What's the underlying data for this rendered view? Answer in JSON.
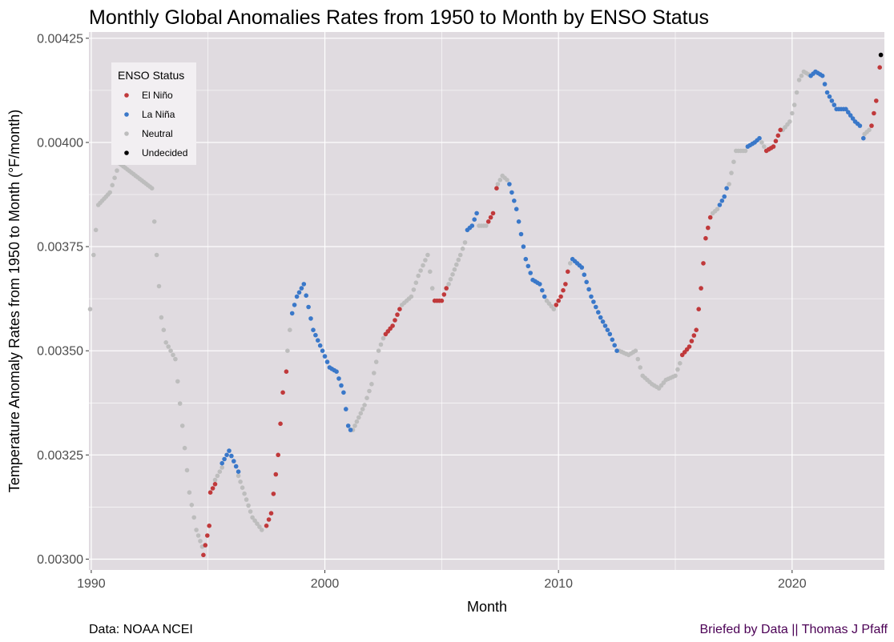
{
  "chart_data": {
    "type": "scatter",
    "title": "Monthly Global Anomalies Rates from 1950 to Month by ENSO Status",
    "xlabel": "Month",
    "ylabel": "Temperature Anomaly Rates from 1950 to Month (°F/month)",
    "xlim": [
      1989.9,
      2023.95
    ],
    "ylim": [
      0.002974,
      0.004265
    ],
    "x_ticks": [
      1990,
      2000,
      2010,
      2020
    ],
    "y_ticks": [
      0.003,
      0.00325,
      0.0035,
      0.00375,
      0.004,
      0.00425
    ],
    "x_tick_labels": [
      "1990",
      "2000",
      "2010",
      "2020"
    ],
    "y_tick_labels": [
      "0.00300",
      "0.00325",
      "0.00350",
      "0.00375",
      "0.00400",
      "0.00425"
    ],
    "grid": true,
    "legend": {
      "title": "ENSO Status",
      "position": "top-left",
      "entries": [
        {
          "label": "El Niño",
          "color": "#c0393b"
        },
        {
          "label": "La Niña",
          "color": "#3a78c9"
        },
        {
          "label": "Neutral",
          "color": "#bdbdbd"
        },
        {
          "label": "Undecided",
          "color": "#000000"
        }
      ]
    },
    "colors": {
      "El Niño": "#c0393b",
      "La Niña": "#3a78c9",
      "Neutral": "#bdbdbd",
      "Undecided": "#000000"
    },
    "anchors": [
      [
        1989.95,
        0.0036,
        "Neutral"
      ],
      [
        1990.1,
        0.00373,
        "Neutral"
      ],
      [
        1990.3,
        0.00385,
        "Neutral"
      ],
      [
        1990.8,
        0.00388,
        "Neutral"
      ],
      [
        1991.2,
        0.00395,
        "Neutral"
      ],
      [
        1992.6,
        0.00389,
        "Neutral"
      ],
      [
        1992.8,
        0.00373,
        "Neutral"
      ],
      [
        1993.0,
        0.00358,
        "Neutral"
      ],
      [
        1993.2,
        0.00352,
        "Neutral"
      ],
      [
        1993.6,
        0.00348,
        "Neutral"
      ],
      [
        1993.9,
        0.00332,
        "Neutral"
      ],
      [
        1994.2,
        0.00316,
        "Neutral"
      ],
      [
        1994.5,
        0.00307,
        "Neutral"
      ],
      [
        1994.75,
        0.00303,
        "Neutral"
      ],
      [
        1994.8,
        0.00301,
        "El Niño"
      ],
      [
        1995.05,
        0.00308,
        "El Niño"
      ],
      [
        1995.1,
        0.00316,
        "El Niño"
      ],
      [
        1995.3,
        0.00318,
        "El Niño"
      ],
      [
        1995.3,
        0.00319,
        "Neutral"
      ],
      [
        1995.6,
        0.00322,
        "Neutral"
      ],
      [
        1995.6,
        0.00323,
        "La Niña"
      ],
      [
        1995.9,
        0.00326,
        "La Niña"
      ],
      [
        1996.3,
        0.00321,
        "La Niña"
      ],
      [
        1996.3,
        0.0032,
        "Neutral"
      ],
      [
        1996.9,
        0.0031,
        "Neutral"
      ],
      [
        1997.3,
        0.00307,
        "Neutral"
      ],
      [
        1997.5,
        0.00308,
        "El Niño"
      ],
      [
        1997.7,
        0.00311,
        "El Niño"
      ],
      [
        1998.0,
        0.00325,
        "El Niño"
      ],
      [
        1998.2,
        0.0034,
        "El Niño"
      ],
      [
        1998.35,
        0.00345,
        "El Niño"
      ],
      [
        1998.4,
        0.0035,
        "Neutral"
      ],
      [
        1998.5,
        0.00355,
        "Neutral"
      ],
      [
        1998.6,
        0.00359,
        "La Niña"
      ],
      [
        1998.8,
        0.00363,
        "La Niña"
      ],
      [
        1999.1,
        0.00366,
        "La Niña"
      ],
      [
        1999.5,
        0.00355,
        "La Niña"
      ],
      [
        1999.9,
        0.0035,
        "La Niña"
      ],
      [
        2000.2,
        0.00346,
        "La Niña"
      ],
      [
        2000.5,
        0.00345,
        "La Niña"
      ],
      [
        2000.8,
        0.0034,
        "La Niña"
      ],
      [
        2001.0,
        0.00332,
        "La Niña"
      ],
      [
        2001.1,
        0.00331,
        "La Niña"
      ],
      [
        2001.2,
        0.00331,
        "Neutral"
      ],
      [
        2001.7,
        0.00337,
        "Neutral"
      ],
      [
        2002.0,
        0.00342,
        "Neutral"
      ],
      [
        2002.3,
        0.0035,
        "Neutral"
      ],
      [
        2002.5,
        0.00353,
        "Neutral"
      ],
      [
        2002.6,
        0.00354,
        "El Niño"
      ],
      [
        2002.9,
        0.00356,
        "El Niño"
      ],
      [
        2003.2,
        0.0036,
        "El Niño"
      ],
      [
        2003.3,
        0.00361,
        "Neutral"
      ],
      [
        2003.7,
        0.00363,
        "Neutral"
      ],
      [
        2004.0,
        0.00368,
        "Neutral"
      ],
      [
        2004.4,
        0.00373,
        "Neutral"
      ],
      [
        2004.6,
        0.00365,
        "Neutral"
      ],
      [
        2004.7,
        0.00362,
        "El Niño"
      ],
      [
        2005.0,
        0.00362,
        "El Niño"
      ],
      [
        2005.2,
        0.00365,
        "El Niño"
      ],
      [
        2005.3,
        0.00366,
        "Neutral"
      ],
      [
        2005.8,
        0.00373,
        "Neutral"
      ],
      [
        2006.0,
        0.00376,
        "Neutral"
      ],
      [
        2006.1,
        0.00379,
        "La Niña"
      ],
      [
        2006.3,
        0.0038,
        "La Niña"
      ],
      [
        2006.5,
        0.00383,
        "La Niña"
      ],
      [
        2006.6,
        0.0038,
        "Neutral"
      ],
      [
        2006.9,
        0.0038,
        "Neutral"
      ],
      [
        2007.0,
        0.00381,
        "El Niño"
      ],
      [
        2007.2,
        0.00383,
        "El Niño"
      ],
      [
        2007.35,
        0.00389,
        "El Niño"
      ],
      [
        2007.4,
        0.0039,
        "Neutral"
      ],
      [
        2007.6,
        0.00392,
        "Neutral"
      ],
      [
        2007.8,
        0.00391,
        "Neutral"
      ],
      [
        2007.9,
        0.0039,
        "La Niña"
      ],
      [
        2008.2,
        0.00384,
        "La Niña"
      ],
      [
        2008.6,
        0.00372,
        "La Niña"
      ],
      [
        2008.9,
        0.00367,
        "La Niña"
      ],
      [
        2009.2,
        0.00366,
        "La Niña"
      ],
      [
        2009.4,
        0.00363,
        "La Niña"
      ],
      [
        2009.5,
        0.00362,
        "Neutral"
      ],
      [
        2009.8,
        0.0036,
        "Neutral"
      ],
      [
        2009.9,
        0.00361,
        "El Niño"
      ],
      [
        2010.1,
        0.00363,
        "El Niño"
      ],
      [
        2010.3,
        0.00366,
        "El Niño"
      ],
      [
        2010.4,
        0.00369,
        "El Niño"
      ],
      [
        2010.5,
        0.00371,
        "Neutral"
      ],
      [
        2010.6,
        0.00372,
        "La Niña"
      ],
      [
        2011.0,
        0.0037,
        "La Niña"
      ],
      [
        2011.4,
        0.00363,
        "La Niña"
      ],
      [
        2011.8,
        0.00358,
        "La Niña"
      ],
      [
        2012.2,
        0.00354,
        "La Niña"
      ],
      [
        2012.5,
        0.0035,
        "La Niña"
      ],
      [
        2012.6,
        0.0035,
        "Neutral"
      ],
      [
        2013.0,
        0.00349,
        "Neutral"
      ],
      [
        2013.3,
        0.0035,
        "Neutral"
      ],
      [
        2013.6,
        0.00344,
        "Neutral"
      ],
      [
        2014.0,
        0.00342,
        "Neutral"
      ],
      [
        2014.3,
        0.00341,
        "Neutral"
      ],
      [
        2014.6,
        0.00343,
        "Neutral"
      ],
      [
        2015.0,
        0.00344,
        "Neutral"
      ],
      [
        2015.2,
        0.00347,
        "Neutral"
      ],
      [
        2015.3,
        0.00349,
        "El Niño"
      ],
      [
        2015.6,
        0.00351,
        "El Niño"
      ],
      [
        2015.9,
        0.00355,
        "El Niño"
      ],
      [
        2016.1,
        0.00365,
        "El Niño"
      ],
      [
        2016.3,
        0.00377,
        "El Niño"
      ],
      [
        2016.5,
        0.00382,
        "El Niño"
      ],
      [
        2016.6,
        0.00383,
        "Neutral"
      ],
      [
        2016.8,
        0.00384,
        "Neutral"
      ],
      [
        2016.9,
        0.00385,
        "La Niña"
      ],
      [
        2017.1,
        0.00387,
        "La Niña"
      ],
      [
        2017.2,
        0.00389,
        "La Niña"
      ],
      [
        2017.3,
        0.0039,
        "Neutral"
      ],
      [
        2017.6,
        0.00398,
        "Neutral"
      ],
      [
        2018.0,
        0.00398,
        "Neutral"
      ],
      [
        2018.1,
        0.00399,
        "La Niña"
      ],
      [
        2018.4,
        0.004,
        "La Niña"
      ],
      [
        2018.6,
        0.00401,
        "La Niña"
      ],
      [
        2018.7,
        0.004,
        "Neutral"
      ],
      [
        2018.8,
        0.00399,
        "Neutral"
      ],
      [
        2018.9,
        0.00398,
        "El Niño"
      ],
      [
        2019.2,
        0.00399,
        "El Niño"
      ],
      [
        2019.5,
        0.00403,
        "El Niño"
      ],
      [
        2019.6,
        0.00403,
        "Neutral"
      ],
      [
        2019.9,
        0.00405,
        "Neutral"
      ],
      [
        2020.1,
        0.00409,
        "Neutral"
      ],
      [
        2020.3,
        0.00415,
        "Neutral"
      ],
      [
        2020.5,
        0.00417,
        "Neutral"
      ],
      [
        2020.8,
        0.00416,
        "Neutral"
      ],
      [
        2020.8,
        0.00416,
        "La Niña"
      ],
      [
        2021.0,
        0.00417,
        "La Niña"
      ],
      [
        2021.3,
        0.00416,
        "La Niña"
      ],
      [
        2021.5,
        0.00412,
        "La Niña"
      ],
      [
        2021.9,
        0.00408,
        "La Niña"
      ],
      [
        2022.3,
        0.00408,
        "La Niña"
      ],
      [
        2022.7,
        0.00405,
        "La Niña"
      ],
      [
        2022.9,
        0.00404,
        "La Niña"
      ],
      [
        2023.05,
        0.00401,
        "La Niña"
      ],
      [
        2023.1,
        0.00402,
        "Neutral"
      ],
      [
        2023.3,
        0.00403,
        "Neutral"
      ],
      [
        2023.4,
        0.00404,
        "El Niño"
      ],
      [
        2023.6,
        0.0041,
        "El Niño"
      ],
      [
        2023.75,
        0.00418,
        "El Niño"
      ],
      [
        2023.8,
        0.00421,
        "Undecided"
      ]
    ]
  },
  "caption": {
    "source": "Data: NOAA NCEI",
    "credit": "Briefed by Data || Thomas J Pfaff"
  }
}
